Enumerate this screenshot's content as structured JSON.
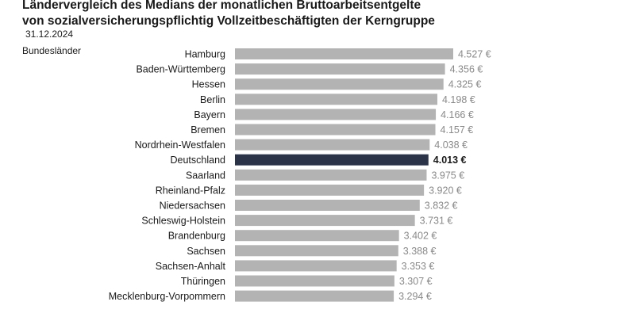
{
  "header": {
    "title_line1": "Ländervergleich des Medians der monatlichen Bruttoarbeitsentgelte",
    "title_line2": "von sozialversicherungspflichtig Vollzeitbeschäftigten der Kerngruppe",
    "date": "31.12.2024",
    "group_label": "Bundesländer"
  },
  "colors": {
    "bar": "#b3b3b3",
    "highlight": "#2b3349"
  },
  "chart_data": {
    "type": "bar",
    "orientation": "horizontal",
    "title": "Ländervergleich des Medians der monatlichen Bruttoarbeitsentgelte von sozialversicherungspflichtig Vollzeitbeschäftigten der Kerngruppe",
    "subtitle": "31.12.2024",
    "ylabel": "Bundesländer",
    "xlim": [
      0,
      4527
    ],
    "grid": false,
    "highlight": "Deutschland",
    "categories": [
      "Hamburg",
      "Baden-Württemberg",
      "Hessen",
      "Berlin",
      "Bayern",
      "Bremen",
      "Nordrhein-Westfalen",
      "Deutschland",
      "Saarland",
      "Rheinland-Pfalz",
      "Niedersachsen",
      "Schleswig-Holstein",
      "Brandenburg",
      "Sachsen",
      "Sachsen-Anhalt",
      "Thüringen",
      "Mecklenburg-Vorpommern"
    ],
    "values": [
      4527,
      4356,
      4325,
      4198,
      4166,
      4157,
      4038,
      4013,
      3975,
      3920,
      3832,
      3731,
      3402,
      3388,
      3353,
      3307,
      3294
    ],
    "value_labels": [
      "4.527 €",
      "4.356 €",
      "4.325 €",
      "4.198 €",
      "4.166 €",
      "4.157 €",
      "4.038 €",
      "4.013 €",
      "3.975 €",
      "3.920 €",
      "3.832 €",
      "3.731 €",
      "3.402 €",
      "3.388 €",
      "3.353 €",
      "3.307 €",
      "3.294 €"
    ]
  }
}
